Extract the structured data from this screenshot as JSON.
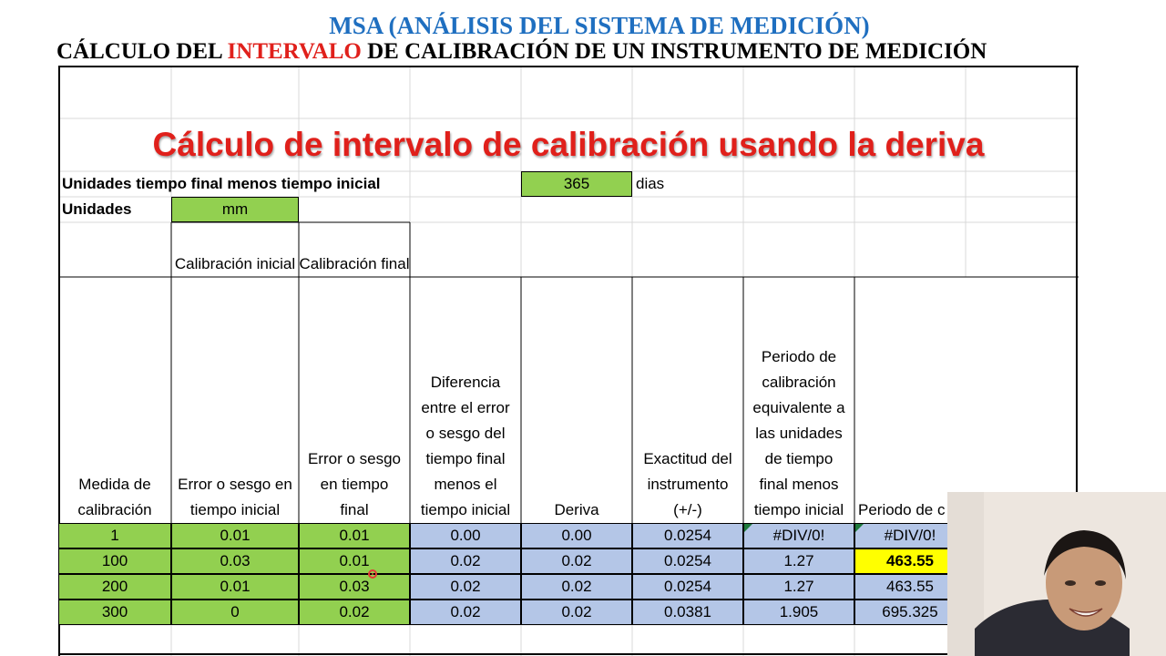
{
  "header": {
    "title": "MSA (ANÁLISIS DEL SISTEMA DE MEDICIÓN)",
    "subtitle_pre": "CÁLCULO DEL ",
    "subtitle_red": "INTERVALO",
    "subtitle_post": " DE CALIBRACIÓN DE UN INSTRUMENTO DE MEDICIÓN"
  },
  "sheet": {
    "big_title": "Cálculo de intervalo de calibración usando la deriva",
    "units_time_label": "Unidades tiempo final menos tiempo inicial",
    "units_time_value": "365",
    "units_time_unit": "dias",
    "units_label": "Unidades",
    "units_value": "mm",
    "group_headers": [
      "Calibración inicial",
      "Calibración final"
    ],
    "columns": [
      "Medida de calibración",
      "Error o sesgo en tiempo inicial",
      "Error o sesgo en tiempo final",
      "Diferencia entre el error o sesgo del tiempo final menos el tiempo inicial",
      "Deriva",
      "Exactitud del instrumento (+/-)",
      "Periodo de calibración equivalente a las unidades de tiempo final menos tiempo inicial",
      "Periodo de c"
    ],
    "rows": [
      [
        "1",
        "0.01",
        "0.01",
        "0.00",
        "0.00",
        "0.0254",
        "#DIV/0!",
        "#DIV/0!"
      ],
      [
        "100",
        "0.03",
        "0.01",
        "0.02",
        "0.02",
        "0.0254",
        "1.27",
        "463.55"
      ],
      [
        "200",
        "0.01",
        "0.03",
        "0.02",
        "0.02",
        "0.0254",
        "1.27",
        "463.55"
      ],
      [
        "300",
        "0",
        "0.02",
        "0.02",
        "0.02",
        "0.0381",
        "1.905",
        "695.325"
      ]
    ],
    "colors": {
      "green": "#92d050",
      "blue": "#b4c6e7",
      "yellow": "#ffff00",
      "title_red": "#e0201b",
      "header_blue": "#1f6fc0"
    }
  },
  "overlay": {
    "icons": [
      "webcam-video",
      "pointer-cursor"
    ]
  }
}
